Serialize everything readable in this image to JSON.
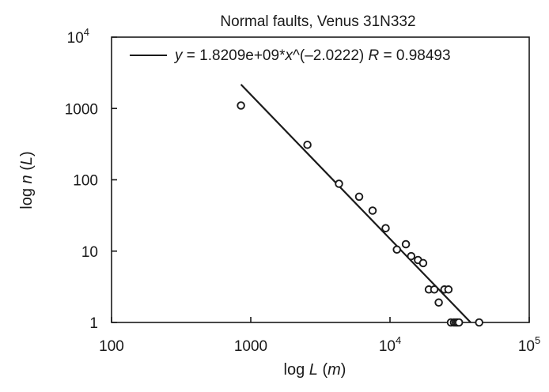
{
  "chart_data": {
    "type": "scatter",
    "title": "Normal faults, Venus 31N332",
    "xlabel": {
      "prefix": "log ",
      "var": "L",
      "open": " (",
      "unit": "m",
      "close": ")"
    },
    "ylabel": {
      "prefix": "log ",
      "var": "n",
      "open": " (",
      "unit": "L",
      "close": ")"
    },
    "x_scale": "log",
    "y_scale": "log",
    "xlim": [
      100,
      100000
    ],
    "ylim": [
      1,
      10000
    ],
    "x_ticks": [
      {
        "value": 100,
        "base": "100",
        "exp": ""
      },
      {
        "value": 1000,
        "base": "1000",
        "exp": ""
      },
      {
        "value": 10000,
        "base": "10",
        "exp": "4"
      },
      {
        "value": 100000,
        "base": "10",
        "exp": "5"
      }
    ],
    "y_ticks": [
      {
        "value": 1,
        "base": "1",
        "exp": ""
      },
      {
        "value": 10,
        "base": "10",
        "exp": ""
      },
      {
        "value": 100,
        "base": "100",
        "exp": ""
      },
      {
        "value": 1000,
        "base": "1000",
        "exp": ""
      },
      {
        "value": 10000,
        "base": "10",
        "exp": "4"
      }
    ],
    "grid": false,
    "legend": {
      "placement": "top",
      "parts": [
        {
          "text": "y",
          "italic": true
        },
        {
          "text": " = 1.8209e+09*",
          "italic": false
        },
        {
          "text": "x",
          "italic": true
        },
        {
          "text": "^(–2.0222) ",
          "italic": false
        },
        {
          "text": "R",
          "italic": true
        },
        {
          "text": " = 0.98493",
          "italic": false
        }
      ]
    },
    "fit": {
      "coefficient": 1820900000,
      "exponent": -2.0222,
      "x_start": 850,
      "x_end": 40500
    },
    "points": [
      {
        "x": 850,
        "y": 1100
      },
      {
        "x": 2550,
        "y": 310
      },
      {
        "x": 4300,
        "y": 88
      },
      {
        "x": 6000,
        "y": 58
      },
      {
        "x": 7500,
        "y": 37
      },
      {
        "x": 9300,
        "y": 21
      },
      {
        "x": 11200,
        "y": 10.5
      },
      {
        "x": 13000,
        "y": 12.5
      },
      {
        "x": 14200,
        "y": 8.5
      },
      {
        "x": 15900,
        "y": 7.5
      },
      {
        "x": 17300,
        "y": 6.8
      },
      {
        "x": 19000,
        "y": 2.9
      },
      {
        "x": 20800,
        "y": 2.9
      },
      {
        "x": 22400,
        "y": 1.9
      },
      {
        "x": 24600,
        "y": 2.9
      },
      {
        "x": 26300,
        "y": 2.9
      },
      {
        "x": 27400,
        "y": 1
      },
      {
        "x": 28800,
        "y": 1
      },
      {
        "x": 29700,
        "y": 1
      },
      {
        "x": 30500,
        "y": 1
      },
      {
        "x": 31300,
        "y": 1
      },
      {
        "x": 43700,
        "y": 1
      }
    ]
  }
}
